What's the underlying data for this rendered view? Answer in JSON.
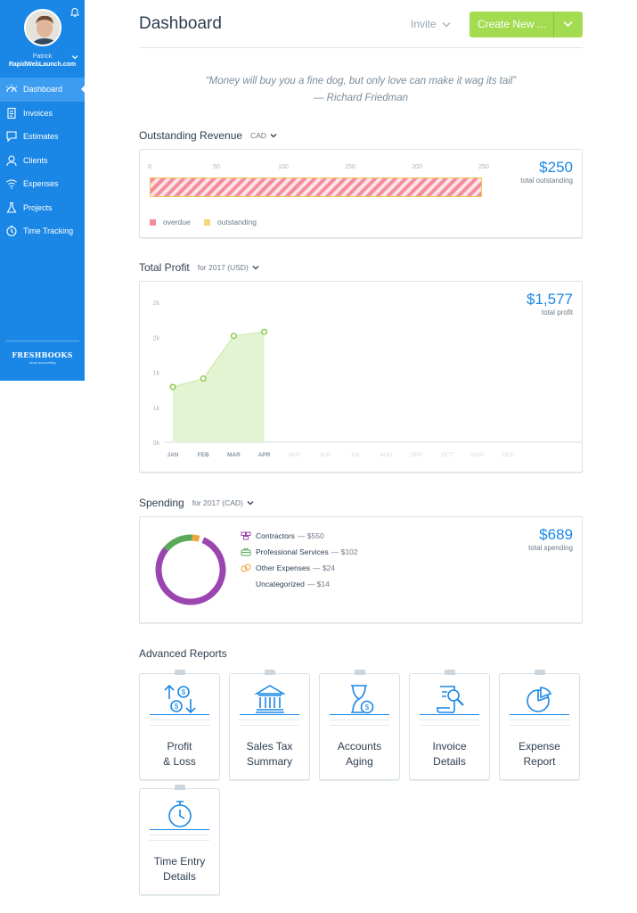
{
  "sidebar": {
    "user_name": "Patrick",
    "company": "RapidWebLaunch.com",
    "items": [
      {
        "label": "Dashboard",
        "icon": "dashboard-icon",
        "active": true
      },
      {
        "label": "Invoices",
        "icon": "invoices-icon"
      },
      {
        "label": "Estimates",
        "icon": "estimates-icon"
      },
      {
        "label": "Clients",
        "icon": "clients-icon"
      },
      {
        "label": "Expenses",
        "icon": "expenses-icon"
      },
      {
        "label": "Projects",
        "icon": "projects-icon"
      },
      {
        "label": "Time Tracking",
        "icon": "time-tracking-icon"
      }
    ],
    "logo_main": "FRESHBOOKS",
    "logo_sub": "cloud accounting"
  },
  "header": {
    "title": "Dashboard",
    "invite_label": "Invite",
    "create_label": "Create New ..."
  },
  "quote": {
    "text": "“Money will buy you a fine dog, but only love can make it wag its tail”",
    "author": "— Richard Friedman"
  },
  "revenue": {
    "title": "Outstanding Revenue",
    "currency": "CAD",
    "amount": "$250",
    "amount_label": "total outstanding",
    "legend": [
      {
        "label": "overdue",
        "color": "#f48c9b"
      },
      {
        "label": "outstanding",
        "color": "#f7d777"
      }
    ]
  },
  "profit": {
    "title": "Total Profit",
    "period": "for 2017 (USD)",
    "amount": "$1,577",
    "amount_label": "total profit"
  },
  "spending": {
    "title": "Spending",
    "period": "for 2017 (CAD)",
    "amount": "$689",
    "amount_label": "total spending",
    "items": [
      {
        "label": "Contractors",
        "amount": "— $550",
        "color": "#9b45b0",
        "icon": "contractors-icon"
      },
      {
        "label": "Professional Services",
        "amount": "— $102",
        "color": "#5aa95a",
        "icon": "professional-services-icon"
      },
      {
        "label": "Other Expenses",
        "amount": "— $24",
        "color": "#f0a33a",
        "icon": "other-expenses-icon"
      },
      {
        "label": "Uncategorized",
        "amount": "— $14",
        "color": "#ffffff",
        "icon": ""
      }
    ]
  },
  "reports": {
    "title": "Advanced Reports",
    "items": [
      {
        "line1": "Profit",
        "line2": "& Loss",
        "icon": "profit-loss-icon"
      },
      {
        "line1": "Sales Tax",
        "line2": "Summary",
        "icon": "sales-tax-icon"
      },
      {
        "line1": "Accounts",
        "line2": "Aging",
        "icon": "accounts-aging-icon"
      },
      {
        "line1": "Invoice",
        "line2": "Details",
        "icon": "invoice-details-icon"
      },
      {
        "line1": "Expense",
        "line2": "Report",
        "icon": "expense-report-icon"
      },
      {
        "line1": "Time Entry",
        "line2": "Details",
        "icon": "time-entry-icon"
      }
    ]
  },
  "chart_data": [
    {
      "type": "bar",
      "orientation": "horizontal",
      "categories": [
        "outstanding"
      ],
      "series": [
        {
          "name": "overdue",
          "values": [
            250
          ]
        },
        {
          "name": "outstanding",
          "values": [
            0
          ]
        }
      ],
      "x_ticks": [
        "0",
        "50",
        "100",
        "150",
        "200",
        "250"
      ],
      "xlim": [
        0,
        250
      ],
      "title": "Outstanding Revenue"
    },
    {
      "type": "area",
      "categories": [
        "JAN",
        "FEB",
        "MAR",
        "APR",
        "MAY",
        "JUN",
        "JUL",
        "AUG",
        "SEP",
        "OCT",
        "NOV",
        "DEC"
      ],
      "values": [
        790,
        910,
        1520,
        1577,
        null,
        null,
        null,
        null,
        null,
        null,
        null,
        null
      ],
      "y_ticks": [
        "0k",
        "1k",
        "1k",
        "2k",
        "2k"
      ],
      "ylim": [
        0,
        2000
      ],
      "title": "Total Profit"
    },
    {
      "type": "pie",
      "donut": true,
      "categories": [
        "Contractors",
        "Professional Services",
        "Other Expenses",
        "Uncategorized"
      ],
      "values": [
        550,
        102,
        24,
        14
      ],
      "title": "Spending"
    }
  ]
}
